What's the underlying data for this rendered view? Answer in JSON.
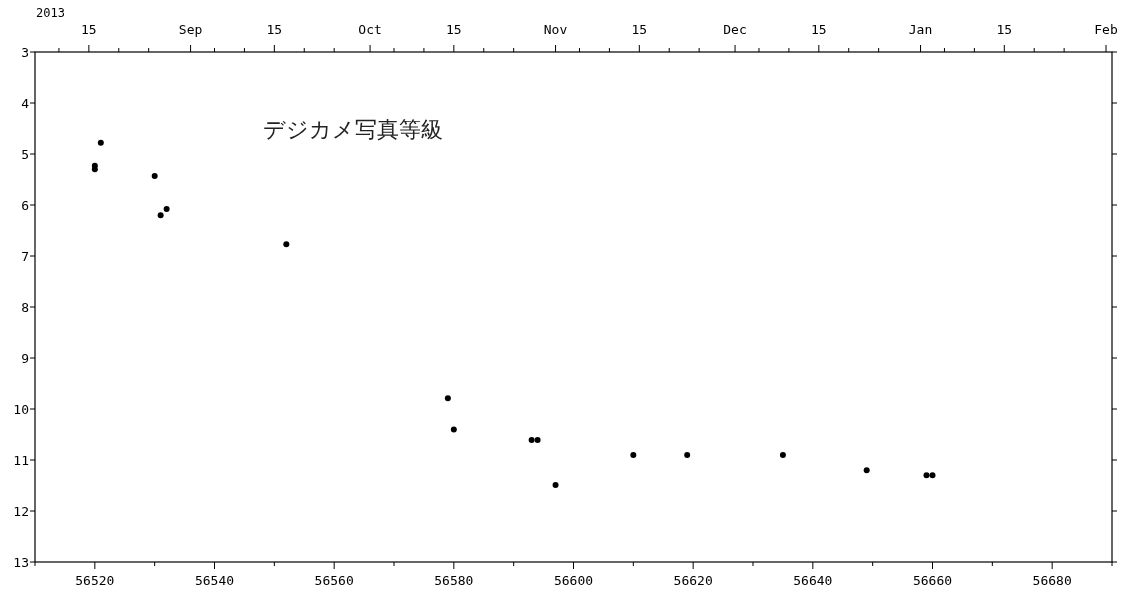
{
  "chart_data": {
    "type": "scatter",
    "x": [
      56521,
      56520,
      56520,
      56530,
      56532,
      56531,
      56552,
      56579,
      56580,
      56593,
      56594,
      56597,
      56610,
      56619,
      56635,
      56649,
      56659,
      56660
    ],
    "series": [
      {
        "color": "#000000",
        "values": [
          4.78,
          5.23,
          5.3,
          5.43,
          6.08,
          6.2,
          6.77,
          9.79,
          10.4,
          10.61,
          10.61,
          11.49,
          10.9,
          10.9,
          10.9,
          11.2,
          11.3,
          11.3
        ]
      }
    ],
    "xlim": [
      56510,
      56690
    ],
    "ylim": [
      13,
      3
    ],
    "xticks": [
      {
        "value": 56510,
        "label": null
      },
      56520,
      {
        "value": 56530,
        "label": null
      },
      56540,
      {
        "value": 56550,
        "label": null
      },
      56560,
      {
        "value": 56570,
        "label": null
      },
      56580,
      {
        "value": 56590,
        "label": null
      },
      56600,
      {
        "value": 56610,
        "label": null
      },
      56620,
      {
        "value": 56630,
        "label": null
      },
      56640,
      {
        "value": 56650,
        "label": null
      },
      56660,
      {
        "value": 56670,
        "label": null
      },
      56680,
      {
        "value": 56690,
        "label": null
      }
    ],
    "yticks": [
      3,
      4,
      5,
      6,
      7,
      8,
      9,
      10,
      11,
      12,
      13
    ],
    "x2lim": [
      "2013-08-06",
      "2014-02-02"
    ],
    "x2label": "2013",
    "x2ticks": [
      {
        "value": "2013-08-10",
        "label": null
      },
      {
        "value": "2013-08-15",
        "label": "15"
      },
      {
        "value": "2013-08-20",
        "label": null
      },
      {
        "value": "2013-08-25",
        "label": null
      },
      {
        "value": "2013-09-01",
        "label": "Sep"
      },
      {
        "value": "2013-09-05",
        "label": null
      },
      {
        "value": "2013-09-10",
        "label": null
      },
      {
        "value": "2013-09-15",
        "label": "15"
      },
      {
        "value": "2013-09-20",
        "label": null
      },
      {
        "value": "2013-09-25",
        "label": null
      },
      {
        "value": "2013-10-01",
        "label": "Oct"
      },
      {
        "value": "2013-10-05",
        "label": null
      },
      {
        "value": "2013-10-10",
        "label": null
      },
      {
        "value": "2013-10-15",
        "label": "15"
      },
      {
        "value": "2013-10-20",
        "label": null
      },
      {
        "value": "2013-10-25",
        "label": null
      },
      {
        "value": "2013-11-01",
        "label": "Nov"
      },
      {
        "value": "2013-11-05",
        "label": null
      },
      {
        "value": "2013-11-10",
        "label": null
      },
      {
        "value": "2013-11-15",
        "label": "15"
      },
      {
        "value": "2013-11-20",
        "label": null
      },
      {
        "value": "2013-11-25",
        "label": null
      },
      {
        "value": "2013-12-01",
        "label": "Dec"
      },
      {
        "value": "2013-12-05",
        "label": null
      },
      {
        "value": "2013-12-10",
        "label": null
      },
      {
        "value": "2013-12-15",
        "label": "15"
      },
      {
        "value": "2013-12-20",
        "label": null
      },
      {
        "value": "2013-12-25",
        "label": null
      },
      {
        "value": "2014-01-01",
        "label": "Jan"
      },
      {
        "value": "2014-01-05",
        "label": null
      },
      {
        "value": "2014-01-10",
        "label": null
      },
      {
        "value": "2014-01-15",
        "label": "15"
      },
      {
        "value": "2014-01-20",
        "label": null
      },
      {
        "value": "2014-01-25",
        "label": null
      },
      {
        "value": "2014-02-01",
        "label": "Feb"
      }
    ],
    "annotations": [
      "デジカメ写真等級"
    ],
    "marker": "circle",
    "grid": false
  }
}
